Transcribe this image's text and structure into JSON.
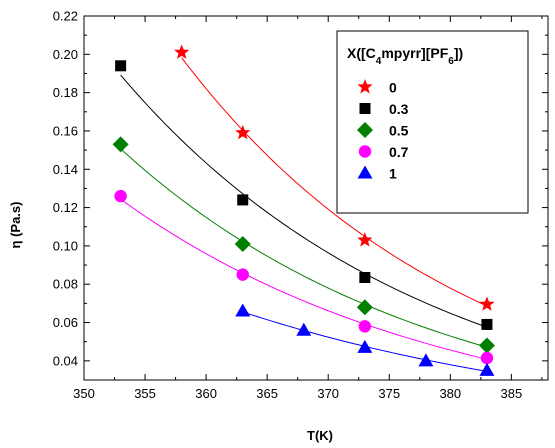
{
  "chart_data": {
    "type": "scatter",
    "xlabel": "T(K)",
    "ylabel": "η (Pa.s)",
    "xlim": [
      350,
      388
    ],
    "ylim": [
      0.03,
      0.22
    ],
    "xticks": [
      350,
      355,
      360,
      365,
      370,
      375,
      380,
      385
    ],
    "xtick_labels": [
      "350",
      "355",
      "360",
      "365",
      "370",
      "375",
      "380",
      "385"
    ],
    "yticks": [
      0.04,
      0.06,
      0.08,
      0.1,
      0.12,
      0.14,
      0.16,
      0.18,
      0.2,
      0.22
    ],
    "ytick_labels": [
      "0.04",
      "0.06",
      "0.08",
      "0.10",
      "0.12",
      "0.14",
      "0.16",
      "0.18",
      "0.20",
      "0.22"
    ],
    "grid": false,
    "legend": {
      "title": "X([C4mpyrr][PF6])",
      "title_parts": {
        "pre": "X([C",
        "sub1": "4",
        "mid": "mpyrr][PF",
        "sub2": "6",
        "post": "])"
      },
      "placement": "top-right"
    },
    "series": [
      {
        "name": "0",
        "color": "#ff0000",
        "marker": "star",
        "x": [
          358,
          363,
          373,
          383
        ],
        "y": [
          0.201,
          0.159,
          0.103,
          0.0695
        ],
        "curve_start": 358
      },
      {
        "name": "0.3",
        "color": "#000000",
        "marker": "square",
        "x": [
          353,
          363,
          373,
          383
        ],
        "y": [
          0.194,
          0.124,
          0.0835,
          0.059
        ],
        "curve_start": 353
      },
      {
        "name": "0.5",
        "color": "#007f00",
        "marker": "diamond",
        "x": [
          353,
          363,
          373,
          383
        ],
        "y": [
          0.153,
          0.101,
          0.068,
          0.048
        ],
        "curve_start": 353
      },
      {
        "name": "0.7",
        "color": "#ff00ff",
        "marker": "circle",
        "x": [
          353,
          363,
          373,
          383
        ],
        "y": [
          0.126,
          0.085,
          0.058,
          0.0415
        ],
        "curve_start": 353
      },
      {
        "name": "1",
        "color": "#0000ff",
        "marker": "triangle",
        "x": [
          363,
          368,
          373,
          378,
          383
        ],
        "y": [
          0.066,
          0.056,
          0.047,
          0.04,
          0.035
        ],
        "curve_start": 363
      }
    ]
  }
}
